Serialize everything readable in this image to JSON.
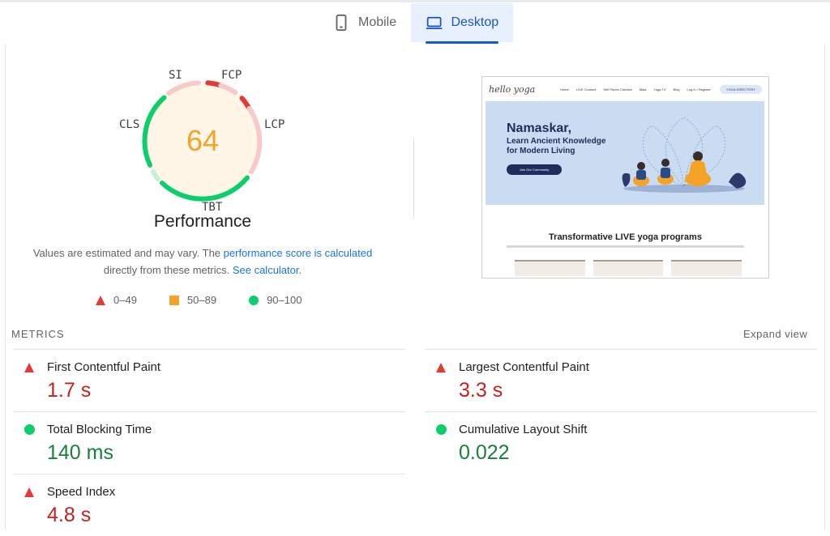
{
  "tabs": [
    {
      "label": "Mobile",
      "icon": "phone-icon",
      "active": false
    },
    {
      "label": "Desktop",
      "icon": "laptop-icon",
      "active": true
    }
  ],
  "gauge": {
    "score": "64",
    "labels": {
      "si": "SI",
      "fcp": "FCP",
      "lcp": "LCP",
      "tbt": "TBT",
      "cls": "CLS"
    },
    "title": "Performance",
    "score_color": "#f5a327"
  },
  "note": {
    "part1": "Values are estimated and may vary. The ",
    "link1": "performance score is calculated",
    "part2": "directly from these metrics. ",
    "link2": "See calculator."
  },
  "legend": [
    {
      "range": "0–49",
      "shape": "triangle",
      "color": "#e53935"
    },
    {
      "range": "50–89",
      "shape": "square",
      "color": "#f5a327"
    },
    {
      "range": "90–100",
      "shape": "circle",
      "color": "#0cce6b"
    }
  ],
  "thumbnail": {
    "logo": "hello yoga",
    "nav_links": [
      "Home",
      "LIVE Courses",
      "Self Paced Courses",
      "Mala",
      "Yoga TV",
      "Blog",
      "Log In / Register"
    ],
    "nav_button": "YOGA DIRECTORY",
    "hero_title": "Namaskar,",
    "hero_sub1": "Learn Ancient Knowledge",
    "hero_sub2": "for Modern Living",
    "hero_cta": "Join Our Community",
    "section_title": "Transformative LIVE yoga programs"
  },
  "metrics": {
    "heading": "METRICS",
    "expand": "Expand view",
    "left": [
      {
        "name": "First Contentful Paint",
        "value": "1.7 s",
        "status": "poor"
      },
      {
        "name": "Total Blocking Time",
        "value": "140 ms",
        "status": "good"
      },
      {
        "name": "Speed Index",
        "value": "4.8 s",
        "status": "poor"
      }
    ],
    "right": [
      {
        "name": "Largest Contentful Paint",
        "value": "3.3 s",
        "status": "poor"
      },
      {
        "name": "Cumulative Layout Shift",
        "value": "0.022",
        "status": "good"
      }
    ]
  }
}
